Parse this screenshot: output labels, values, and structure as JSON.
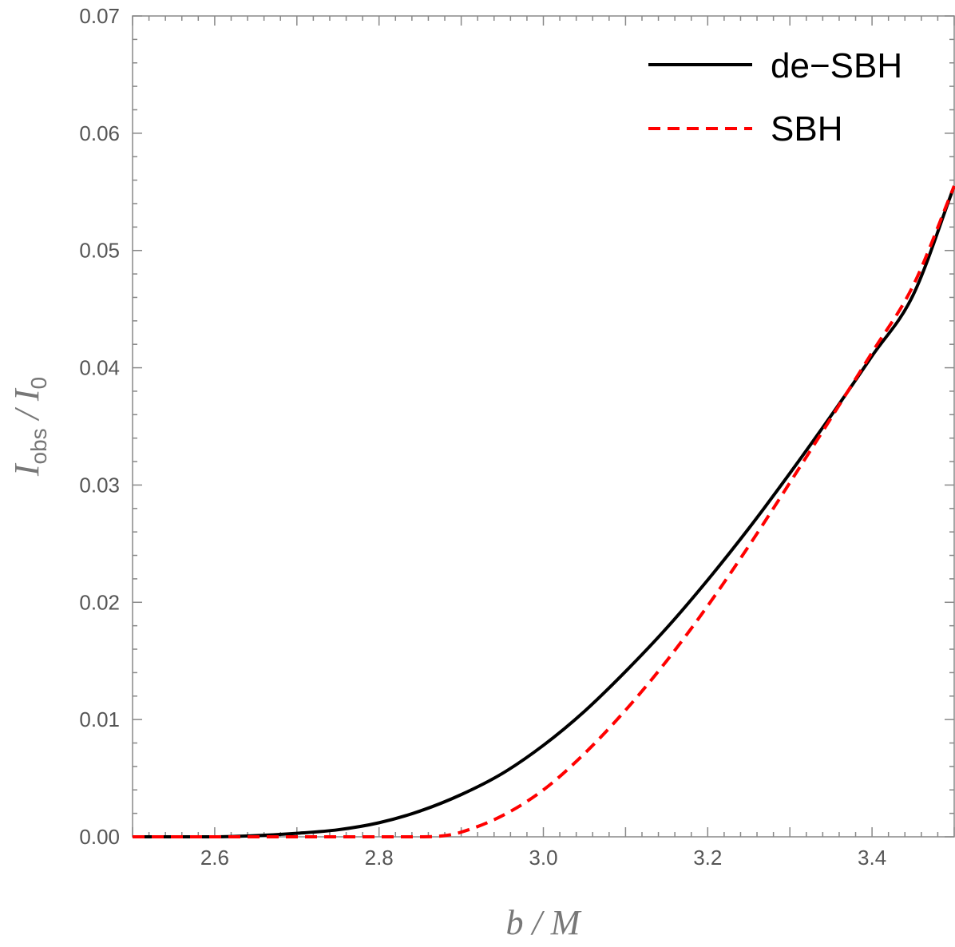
{
  "chart_data": {
    "type": "line",
    "xlabel": "b / M",
    "ylabel": "I_obs / I_0",
    "xlim": [
      2.5,
      3.5
    ],
    "ylim": [
      0,
      0.07
    ],
    "x_ticks": [
      "2.6",
      "2.8",
      "3.0",
      "3.2",
      "3.4"
    ],
    "x_tick_values": [
      2.6,
      2.8,
      3.0,
      3.2,
      3.4
    ],
    "y_ticks": [
      "0.00",
      "0.01",
      "0.02",
      "0.03",
      "0.04",
      "0.05",
      "0.06",
      "0.07"
    ],
    "y_tick_values": [
      0,
      0.01,
      0.02,
      0.03,
      0.04,
      0.05,
      0.06,
      0.07
    ],
    "legend_position": "top-right",
    "grid": false,
    "series": [
      {
        "name": "de−SBH",
        "color": "#000000",
        "style": "solid",
        "x": [
          2.5,
          2.6,
          2.65,
          2.7,
          2.75,
          2.8,
          2.85,
          2.9,
          2.95,
          3.0,
          3.05,
          3.1,
          3.15,
          3.2,
          3.25,
          3.3,
          3.35,
          3.4,
          3.45,
          3.5
        ],
        "y": [
          0,
          0,
          0.0001,
          0.0003,
          0.0006,
          0.0012,
          0.0022,
          0.0036,
          0.0054,
          0.0078,
          0.0107,
          0.0141,
          0.0178,
          0.0219,
          0.0263,
          0.031,
          0.0359,
          0.041,
          0.0462,
          0.0555
        ]
      },
      {
        "name": "SBH",
        "color": "#ff0000",
        "style": "dashed",
        "x": [
          2.5,
          2.6,
          2.7,
          2.8,
          2.85,
          2.88,
          2.9,
          2.95,
          3.0,
          3.05,
          3.1,
          3.15,
          3.2,
          3.25,
          3.3,
          3.35,
          3.4,
          3.45,
          3.5
        ],
        "y": [
          0,
          0,
          0,
          0,
          0,
          0.0001,
          0.0004,
          0.0018,
          0.004,
          0.0071,
          0.0108,
          0.015,
          0.0197,
          0.0248,
          0.0302,
          0.0357,
          0.0413,
          0.047,
          0.0555
        ]
      }
    ]
  }
}
